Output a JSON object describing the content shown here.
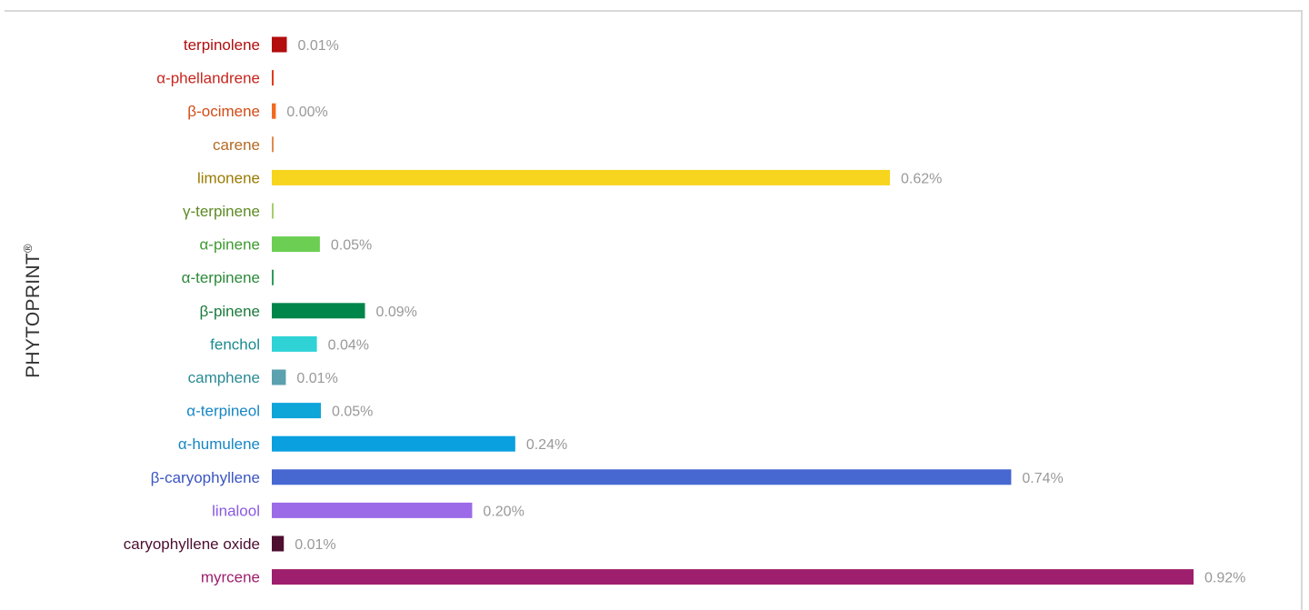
{
  "side_label": {
    "text": "PHYTOPRINT",
    "mark": "®"
  },
  "chart_data": {
    "type": "bar",
    "orientation": "horizontal",
    "title": "",
    "xlabel": "",
    "ylabel": "",
    "value_suffix": "%",
    "xlim": [
      0,
      0.92
    ],
    "grid": false,
    "legend": "none",
    "categories": [
      "terpinolene",
      "α-phellandrene",
      "β-ocimene",
      "carene",
      "limonene",
      "γ-terpinene",
      "α-pinene",
      "α-terpinene",
      "β-pinene",
      "fenchol",
      "camphene",
      "α-terpineol",
      "α-humulene",
      "β-caryophyllene",
      "linalool",
      "caryophyllene oxide",
      "myrcene"
    ],
    "values": [
      0.015,
      0.0,
      0.004,
      0.0,
      0.617,
      0.0,
      0.048,
      0.0,
      0.093,
      0.045,
      0.014,
      0.049,
      0.243,
      0.738,
      0.2,
      0.012,
      0.92
    ],
    "value_labels": [
      "0.01%",
      "",
      "0.00%",
      "",
      "0.62%",
      "",
      "0.05%",
      "",
      "0.09%",
      "0.04%",
      "0.01%",
      "0.05%",
      "0.24%",
      "0.74%",
      "0.20%",
      "0.01%",
      "0.92%"
    ],
    "bar_colors": [
      "#b30d0d",
      "#e03a1e",
      "#f26a21",
      "#e08a50",
      "#f7d41e",
      "#a3cf6e",
      "#6ccf53",
      "#2e9a5a",
      "#00854a",
      "#2fd3d6",
      "#5ba1b0",
      "#0ea5d9",
      "#0aa0e0",
      "#4767d1",
      "#9b6be8",
      "#4d0e30",
      "#9e1f6d"
    ],
    "label_colors": [
      "#b30d0d",
      "#c8261e",
      "#d24b14",
      "#b56a24",
      "#9a7a00",
      "#5e8a25",
      "#3e9a2f",
      "#2c8a3a",
      "#1a7a3a",
      "#1b8a8f",
      "#2a8a94",
      "#1687c4",
      "#1687c4",
      "#3a55c0",
      "#8a5ae0",
      "#4d0e30",
      "#9e1f6d"
    ]
  }
}
